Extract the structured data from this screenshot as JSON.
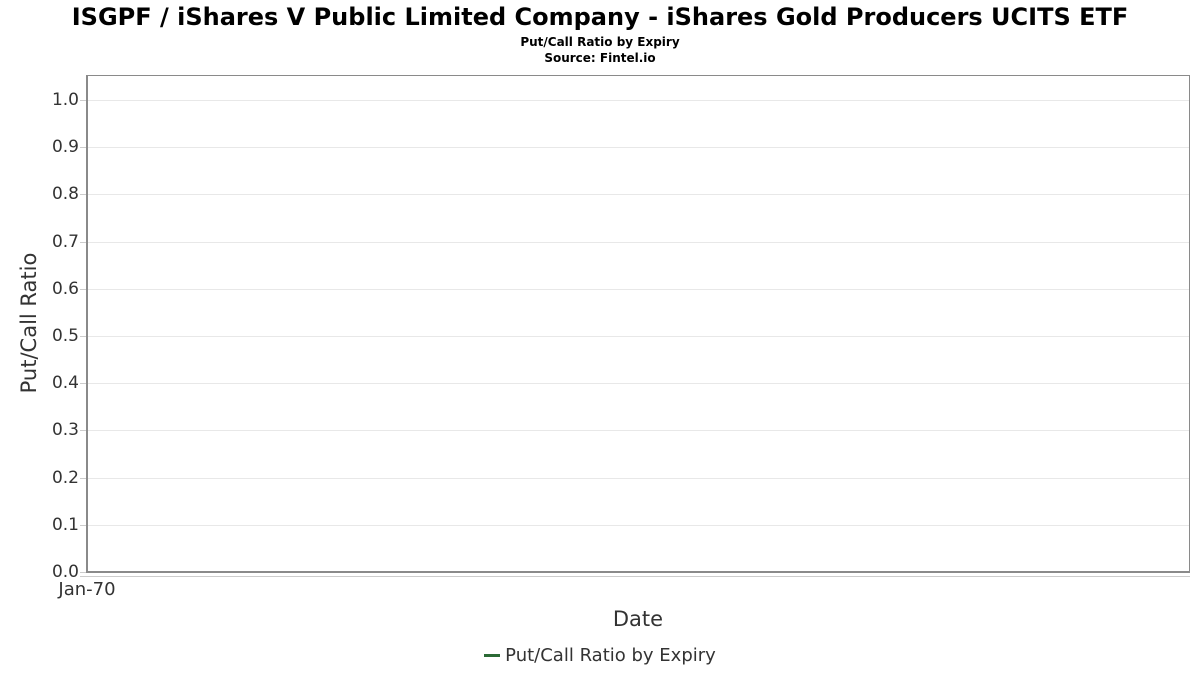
{
  "chart_data": {
    "type": "line",
    "title": "ISGPF / iShares V Public Limited Company - iShares Gold Producers UCITS ETF",
    "subtitle": "Put/Call Ratio by Expiry",
    "source": "Source: Fintel.io",
    "xlabel": "Date",
    "ylabel": "Put/Call Ratio",
    "x_tick_labels": [
      "Jan-70"
    ],
    "y_tick_labels": [
      "1.0",
      "0.9",
      "0.8",
      "0.7",
      "0.6",
      "0.5",
      "0.4",
      "0.3",
      "0.2",
      "0.1",
      "0.0"
    ],
    "y_tick_values": [
      1.0,
      0.9,
      0.8,
      0.7,
      0.6,
      0.5,
      0.4,
      0.3,
      0.2,
      0.1,
      0.0
    ],
    "ylim": [
      0.0,
      1.05
    ],
    "grid": true,
    "legend_position": "bottom",
    "series": [
      {
        "name": "Put/Call Ratio by Expiry",
        "color": "#2b6a35",
        "x": [],
        "values": []
      }
    ]
  },
  "colors": {
    "background": "#ffffff",
    "grid": "#e8e8e8",
    "plot_border": "#8a8a8a",
    "axis_line": "#cccccc",
    "tick": "#cccccc",
    "label_text": "#333333",
    "title_text": "#000000",
    "series_green": "#2b6a35"
  }
}
